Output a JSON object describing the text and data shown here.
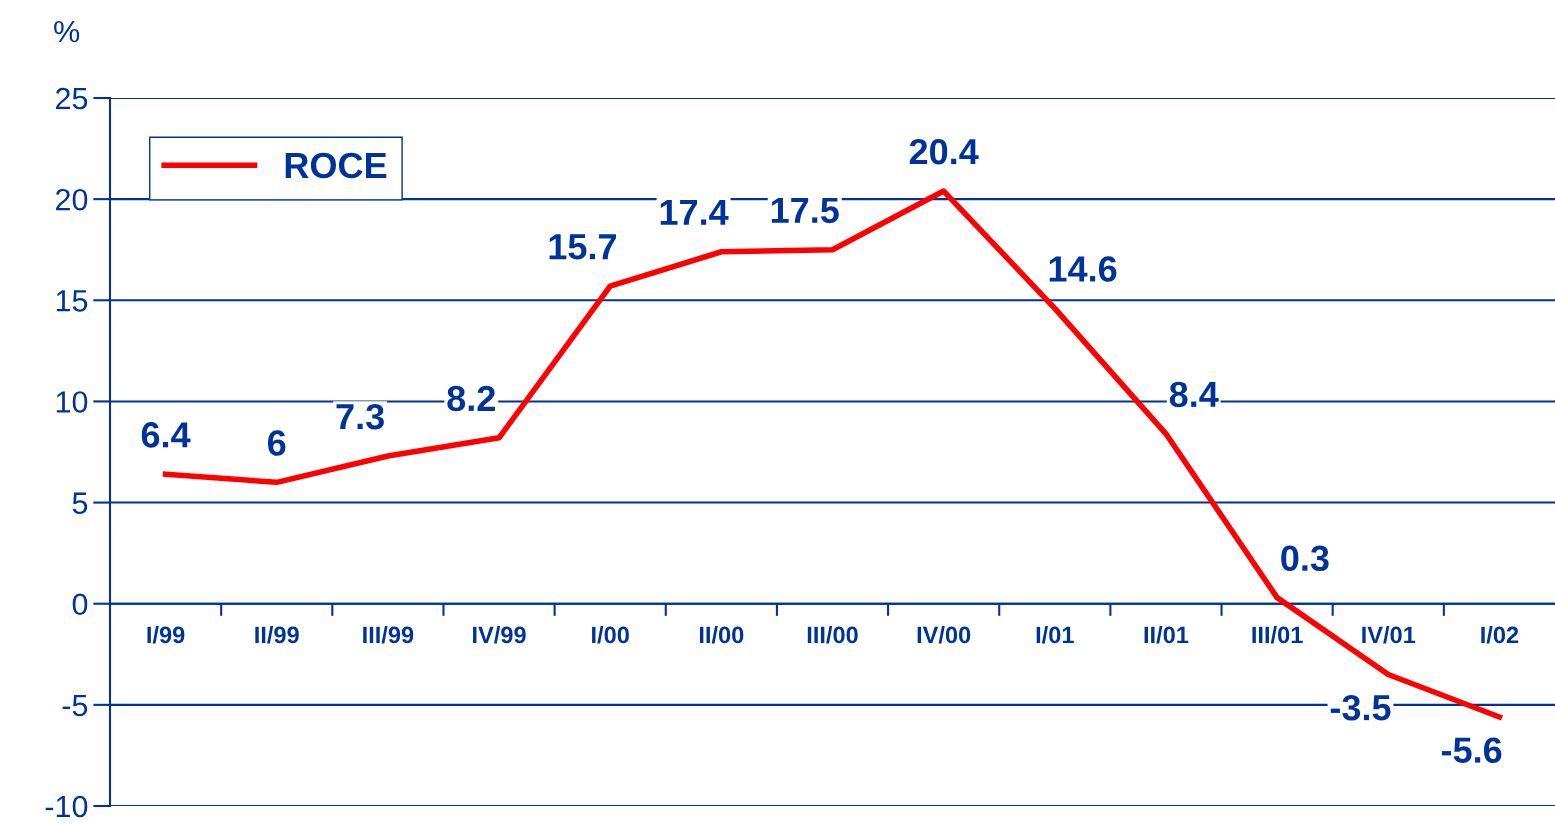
{
  "chart_data": {
    "type": "line",
    "ylabel": "%",
    "categories": [
      "I/99",
      "II/99",
      "III/99",
      "IV/99",
      "I/00",
      "II/00",
      "III/00",
      "IV/00",
      "I/01",
      "II/01",
      "III/01",
      "IV/01",
      "I/02"
    ],
    "series": [
      {
        "name": "ROCE",
        "color": "#ff0000",
        "values": [
          6.4,
          6,
          7.3,
          8.2,
          15.7,
          17.4,
          17.5,
          20.4,
          14.6,
          8.4,
          0.3,
          -3.5,
          -5.6
        ]
      }
    ],
    "ylim": [
      -10,
      25
    ],
    "yticks": [
      -10,
      -5,
      0,
      5,
      10,
      15,
      20,
      25
    ],
    "grid": "y",
    "legend": "top left",
    "data_labels": true,
    "marker": "none",
    "line_style": "solid"
  }
}
